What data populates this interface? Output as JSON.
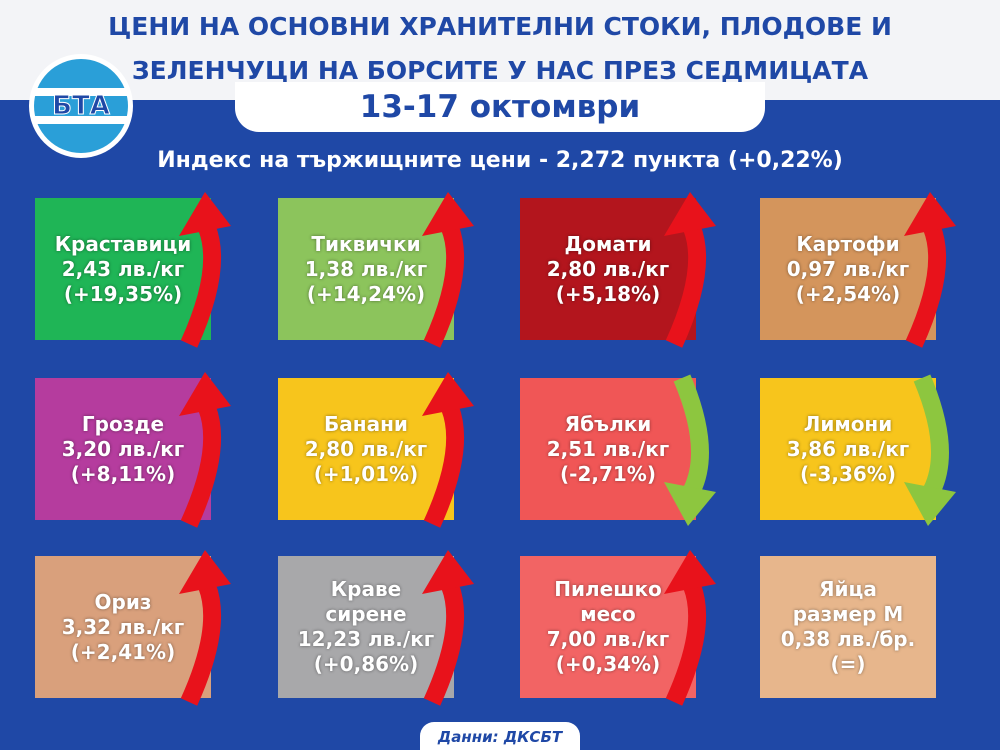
{
  "header": {
    "title": [
      "ЦЕНИ НА ОСНОВНИ ХРАНИТЕЛНИ СТОКИ, ПЛОДОВЕ И",
      "ЗЕЛЕНЧУЦИ НА БОРСИТЕ У НАС ПРЕЗ СЕДМИЦАТА"
    ],
    "date": "13-17 октомври",
    "logo": "БТА"
  },
  "index": "Индекс на тържищните цени - 2,272 пункта (+0,22%)",
  "cards": [
    {
      "name": "Краставици",
      "price": "2,43 лв./кг",
      "change": "(+19,35%)"
    },
    {
      "name": "Тиквички",
      "price": "1,38 лв./кг",
      "change": "(+14,24%)"
    },
    {
      "name": "Домати",
      "price": "2,80 лв./кг",
      "change": "(+5,18%)"
    },
    {
      "name": "Картофи",
      "price": "0,97 лв./кг",
      "change": "(+2,54%)"
    },
    {
      "name": "Грозде",
      "price": "3,20 лв./кг",
      "change": "(+8,11%)"
    },
    {
      "name": "Банани",
      "price": "2,80 лв./кг",
      "change": "(+1,01%)"
    },
    {
      "name": "Ябълки",
      "price": "2,51 лв./кг",
      "change": "(-2,71%)"
    },
    {
      "name": "Лимони",
      "price": "3,86 лв./кг",
      "change": "(-3,36%)"
    },
    {
      "name": "Ориз",
      "price": "3,32 лв./кг",
      "change": "(+2,41%)"
    },
    {
      "name": "Краве сирене",
      "price": "12,23 лв./кг",
      "change": "(+0,86%)"
    },
    {
      "name": "Пилешко месо",
      "price": "7,00 лв./кг",
      "change": "(+0,34%)"
    },
    {
      "name": "Яйца размер М",
      "price": "0,38 лв./бр.",
      "change": "(=)"
    }
  ],
  "source": "Данни: ДКСБТ"
}
